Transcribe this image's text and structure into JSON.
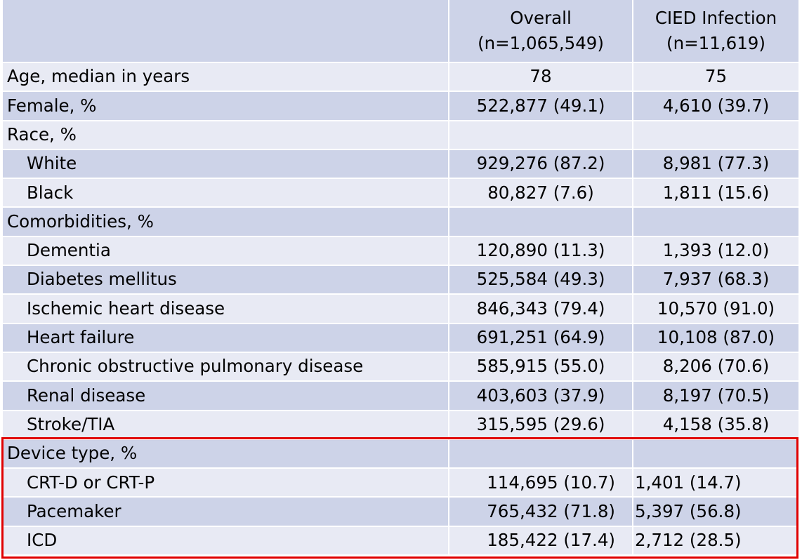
{
  "header": {
    "col_overall_line1": "Overall",
    "col_overall_line2": "(n=1,065,549)",
    "col_cied_line1": "CIED Infection",
    "col_cied_line2": "(n=11,619)"
  },
  "rows": [
    {
      "label": "Age, median in years",
      "overall": "78",
      "cied": "75"
    },
    {
      "label": "Female, %",
      "overall": "522,877 (49.1)",
      "cied": "4,610 (39.7)"
    },
    {
      "label": "Race, %",
      "overall": "",
      "cied": ""
    },
    {
      "label": "White",
      "overall": "929,276 (87.2)",
      "cied": "8,981 (77.3)"
    },
    {
      "label": "Black",
      "overall": "80,827 (7.6)",
      "cied": "1,811 (15.6)"
    },
    {
      "label": "Comorbidities, %",
      "overall": "",
      "cied": ""
    },
    {
      "label": "Dementia",
      "overall": "120,890 (11.3)",
      "cied": "1,393 (12.0)"
    },
    {
      "label": "Diabetes mellitus",
      "overall": "525,584 (49.3)",
      "cied": "7,937 (68.3)"
    },
    {
      "label": "Ischemic heart disease",
      "overall": "846,343 (79.4)",
      "cied": "10,570 (91.0)"
    },
    {
      "label": "Heart failure",
      "overall": "691,251 (64.9)",
      "cied": "10,108 (87.0)"
    },
    {
      "label": "Chronic obstructive pulmonary disease",
      "overall": "585,915 (55.0)",
      "cied": "8,206 (70.6)"
    },
    {
      "label": "Renal disease",
      "overall": "403,603 (37.9)",
      "cied": "8,197 (70.5)"
    },
    {
      "label": "Stroke/TIA",
      "overall": "315,595 (29.6)",
      "cied": "4,158 (35.8)"
    },
    {
      "label": "Device type, %",
      "overall": "",
      "cied": ""
    },
    {
      "label": "CRT-D or CRT-P",
      "overall": "114,695 (10.7)",
      "cied": "1,401 (14.7)"
    },
    {
      "label": "Pacemaker",
      "overall": "765,432 (71.8)",
      "cied": "5,397 (56.8)"
    },
    {
      "label": "ICD",
      "overall": "185,422 (17.4)",
      "cied": "2,712 (28.5)"
    }
  ],
  "highlight_color": "#e00000",
  "band_colors": {
    "dark": "#cdd3e8",
    "light": "#e8eaf4"
  }
}
